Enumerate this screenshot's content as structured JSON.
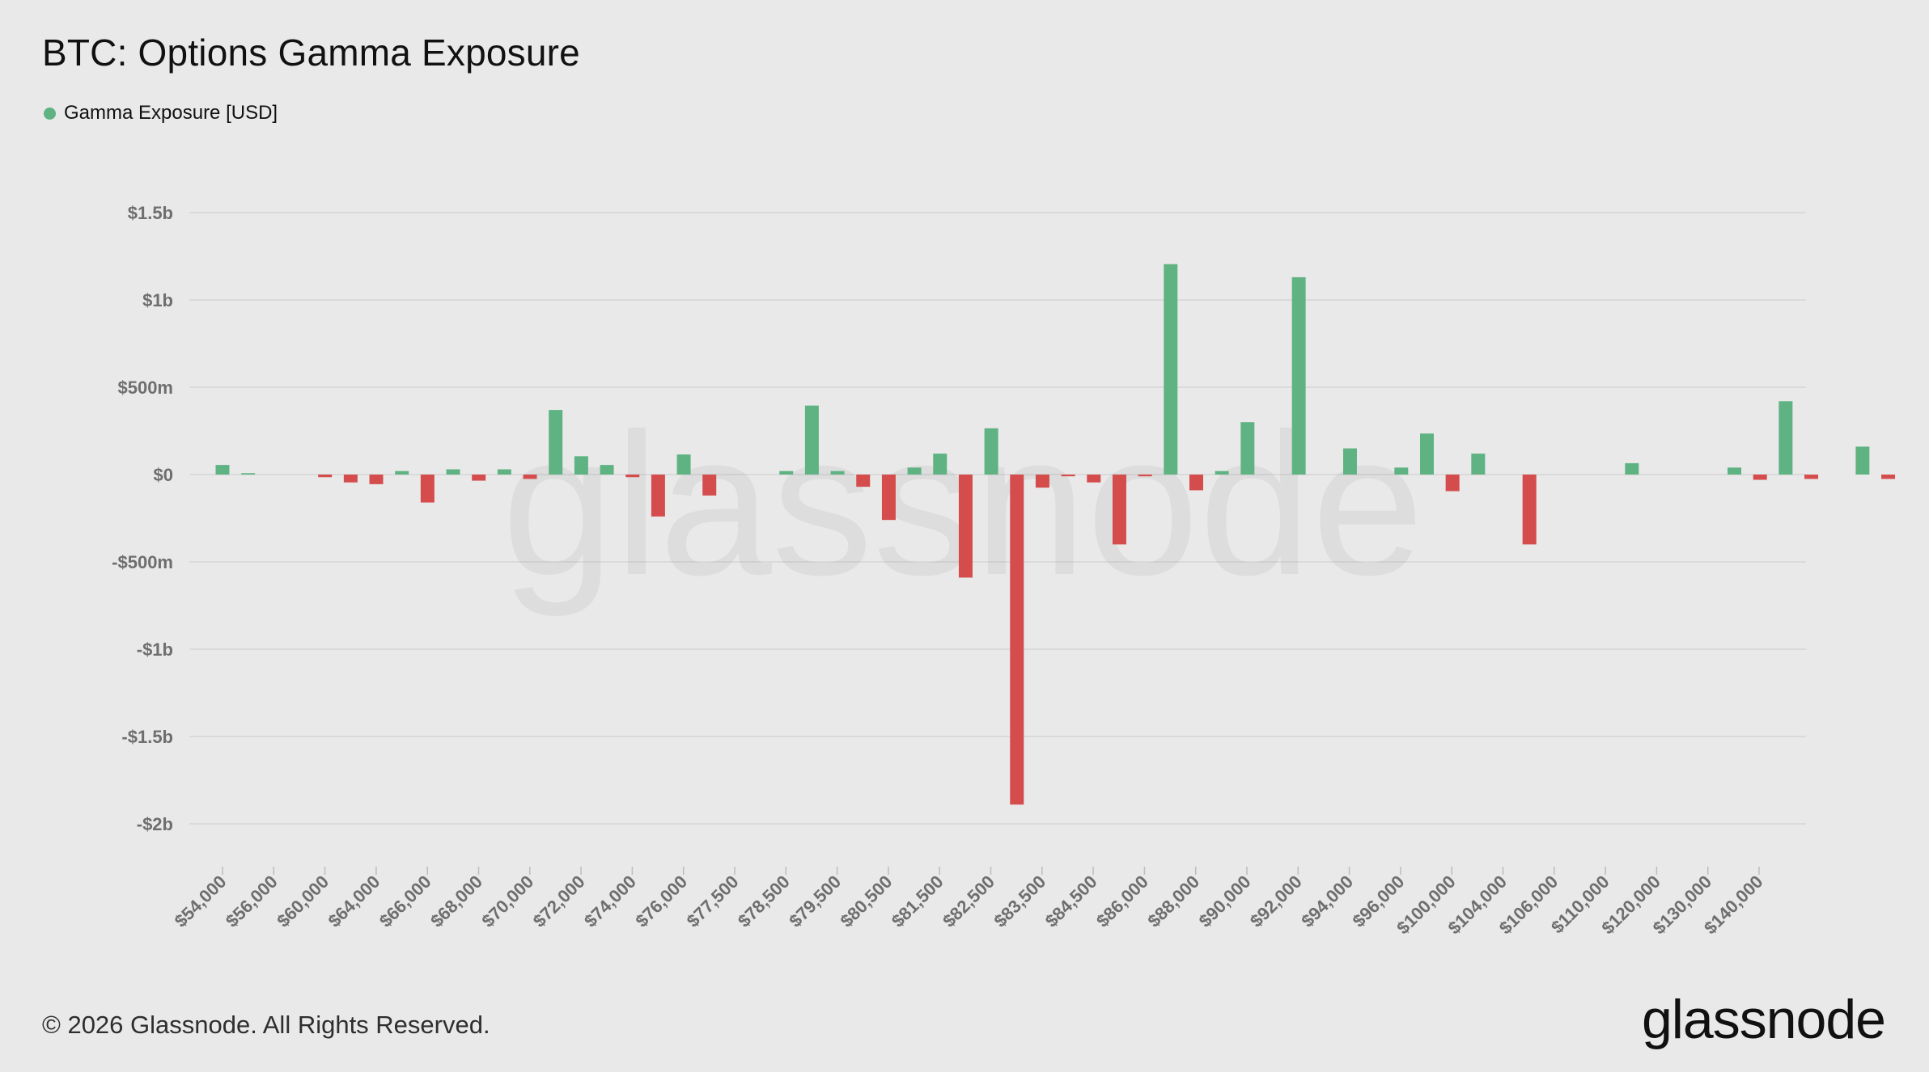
{
  "title": "BTC: Options Gamma Exposure",
  "legend": {
    "label": "Gamma Exposure [USD]",
    "color": "#5fb383"
  },
  "footer": "© 2026 Glassnode. All Rights Reserved.",
  "brand": "glassnode",
  "watermark": "glassnode",
  "colors": {
    "positive": "#5fb383",
    "negative": "#d54c4c",
    "grid": "#d6d6d6",
    "background": "#e9e9e9"
  },
  "chart_data": {
    "type": "bar",
    "title": "BTC: Options Gamma Exposure",
    "xlabel": "",
    "ylabel": "",
    "ylim": [
      -2200000000,
      1500000000
    ],
    "grid": true,
    "legend_position": "top-left",
    "y_ticks": [
      {
        "value": 1500000000,
        "label": "$1.5b"
      },
      {
        "value": 1000000000,
        "label": "$1b"
      },
      {
        "value": 500000000,
        "label": "$500m"
      },
      {
        "value": 0,
        "label": "$0"
      },
      {
        "value": -500000000,
        "label": "-$500m"
      },
      {
        "value": -1000000000,
        "label": "-$1b"
      },
      {
        "value": -1500000000,
        "label": "-$1.5b"
      },
      {
        "value": -2000000000,
        "label": "-$2b"
      }
    ],
    "x_tick_labels": [
      "$54,000",
      "$56,000",
      "$60,000",
      "$64,000",
      "$66,000",
      "$68,000",
      "$70,000",
      "$72,000",
      "$74,000",
      "$76,000",
      "$77,500",
      "$78,500",
      "$79,500",
      "$80,500",
      "$81,500",
      "$82,500",
      "$83,500",
      "$84,500",
      "$86,000",
      "$88,000",
      "$90,000",
      "$92,000",
      "$94,000",
      "$96,000",
      "$100,000",
      "$104,000",
      "$106,000",
      "$110,000",
      "$120,000",
      "$130,000",
      "$140,000"
    ],
    "series": [
      {
        "name": "Gamma Exposure [USD]",
        "values": [
          55000000,
          8000000,
          0,
          0,
          -15000000,
          -45000000,
          -55000000,
          20000000,
          -160000000,
          30000000,
          -35000000,
          30000000,
          -25000000,
          370000000,
          105000000,
          55000000,
          -15000000,
          -240000000,
          115000000,
          -120000000,
          0,
          0,
          20000000,
          395000000,
          20000000,
          -70000000,
          -260000000,
          40000000,
          120000000,
          -590000000,
          265000000,
          -1890000000,
          -75000000,
          -10000000,
          -45000000,
          -400000000,
          -10000000,
          1205000000,
          -90000000,
          20000000,
          300000000,
          0,
          1130000000,
          0,
          150000000,
          0,
          40000000,
          235000000,
          -95000000,
          120000000,
          0,
          -400000000,
          0,
          0,
          0,
          65000000,
          0,
          0,
          0,
          40000000,
          -30000000,
          420000000,
          -25000000,
          0,
          160000000,
          -25000000,
          0,
          0,
          10000000
        ]
      }
    ]
  }
}
